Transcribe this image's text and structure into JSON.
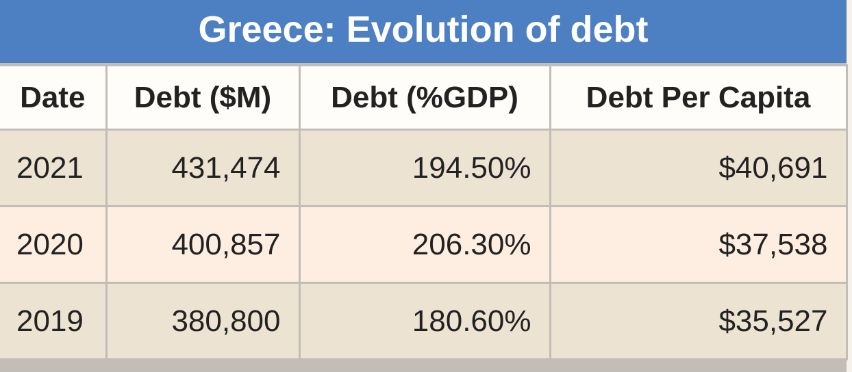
{
  "header": {
    "title": "Greece: Evolution of debt"
  },
  "table": {
    "columns": [
      "Date",
      "Debt ($M)",
      "Debt (%GDP)",
      "Debt Per Capita"
    ],
    "rows": [
      [
        "2021",
        "431,474",
        "194.50%",
        "$40,691"
      ],
      [
        "2020",
        "400,857",
        "206.30%",
        "$37,538"
      ],
      [
        "2019",
        "380,800",
        "180.60%",
        "$35,527"
      ]
    ]
  }
}
